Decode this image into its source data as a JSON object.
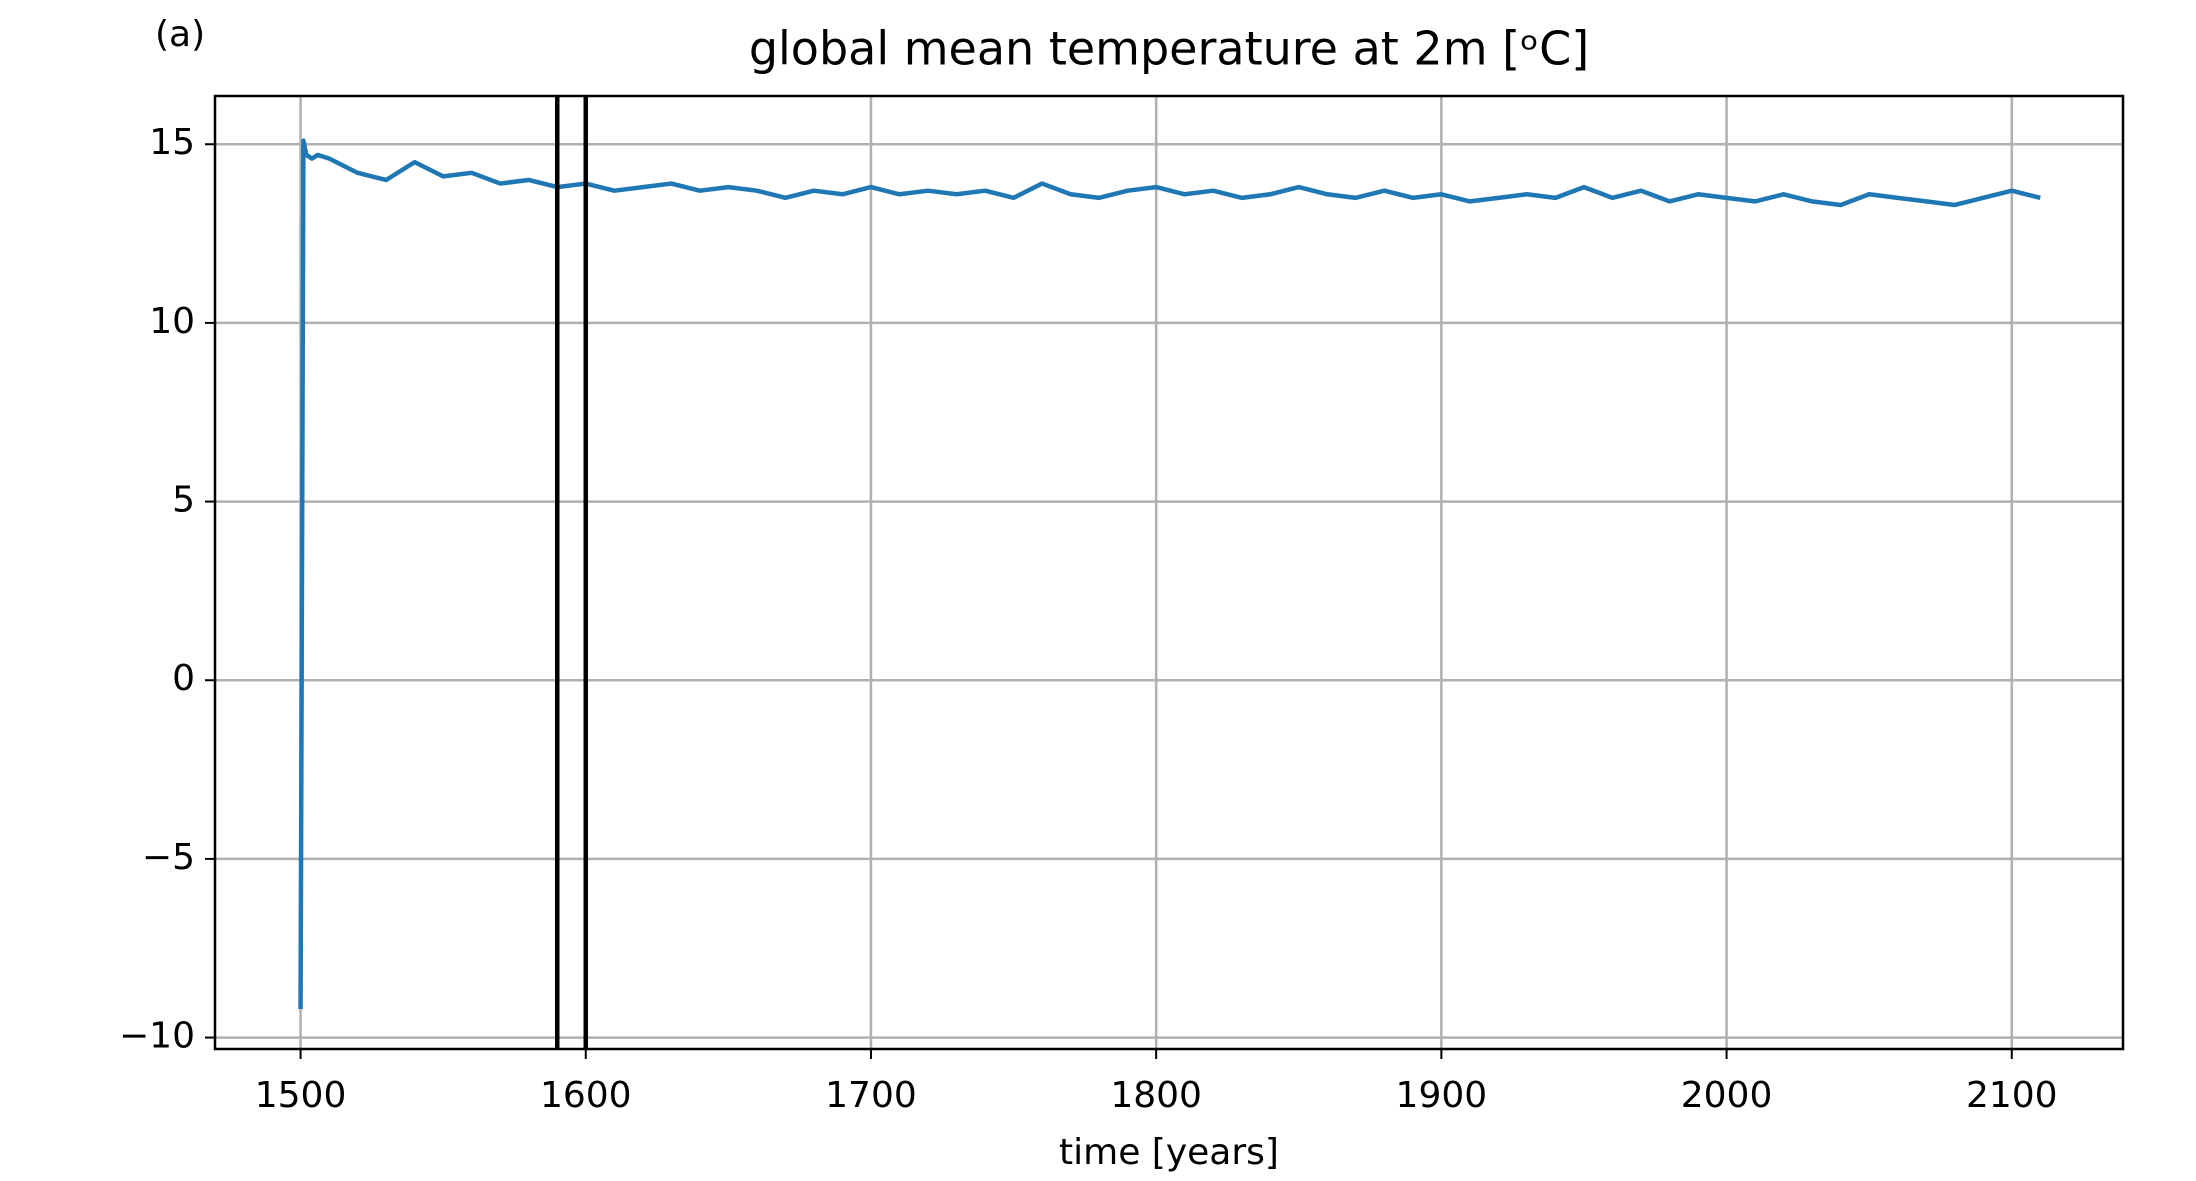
{
  "chart_data": {
    "type": "line",
    "panel_label": "(a)",
    "title": "global mean temperature at 2m [ᵒC]",
    "xlabel": "time [years]",
    "x": [
      1500,
      1501,
      1502,
      1504,
      1506,
      1510,
      1520,
      1530,
      1540,
      1550,
      1560,
      1570,
      1580,
      1590,
      1600,
      1610,
      1620,
      1630,
      1640,
      1650,
      1660,
      1670,
      1680,
      1690,
      1700,
      1710,
      1720,
      1730,
      1740,
      1750,
      1760,
      1770,
      1780,
      1790,
      1800,
      1810,
      1820,
      1830,
      1840,
      1850,
      1860,
      1870,
      1880,
      1890,
      1900,
      1910,
      1920,
      1930,
      1940,
      1950,
      1960,
      1970,
      1980,
      1990,
      2000,
      2010,
      2020,
      2030,
      2040,
      2050,
      2060,
      2070,
      2080,
      2090,
      2100,
      2110
    ],
    "series": [
      {
        "color": "#1f77b4",
        "values": [
          -9.2,
          15.1,
          14.7,
          14.6,
          14.7,
          14.6,
          14.2,
          14.0,
          14.5,
          14.1,
          14.2,
          13.9,
          14.0,
          13.8,
          13.9,
          13.7,
          13.8,
          13.9,
          13.7,
          13.8,
          13.7,
          13.5,
          13.7,
          13.6,
          13.8,
          13.6,
          13.7,
          13.6,
          13.7,
          13.5,
          13.9,
          13.6,
          13.5,
          13.7,
          13.8,
          13.6,
          13.7,
          13.5,
          13.6,
          13.8,
          13.6,
          13.5,
          13.7,
          13.5,
          13.6,
          13.4,
          13.5,
          13.6,
          13.5,
          13.8,
          13.5,
          13.7,
          13.4,
          13.6,
          13.5,
          13.4,
          13.6,
          13.4,
          13.3,
          13.6,
          13.5,
          13.4,
          13.3,
          13.5,
          13.7,
          13.5
        ]
      }
    ],
    "vlines": [
      1590,
      1600
    ],
    "vline_color": "#000000",
    "xlim": [
      1470,
      2139
    ],
    "xticks": [
      1500,
      1600,
      1700,
      1800,
      1900,
      2000,
      2100
    ],
    "ylim": [
      -10.32,
      16.35
    ],
    "yticks": [
      {
        "value": -10,
        "label": "−10"
      },
      {
        "value": -5,
        "label": "−5"
      },
      0,
      5,
      10,
      15
    ],
    "grid": true
  }
}
